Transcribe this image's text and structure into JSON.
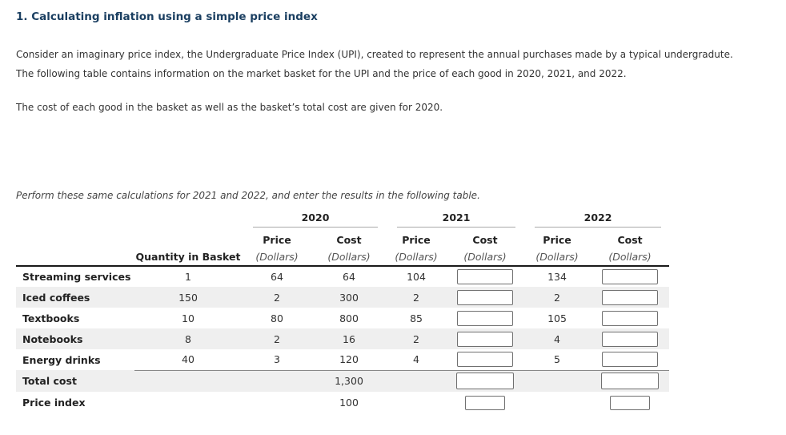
{
  "header": {
    "title": "1. Calculating inflation using a simple price index"
  },
  "intro": {
    "line1": "Consider an imaginary price index, the Undergraduate Price Index (UPI), created to represent the annual purchases made by a typical undergradute.",
    "line2": "The following table contains information on the market basket for the UPI and the price of each good in 2020, 2021, and 2022.",
    "note": "The cost of each good in the basket as well as the basket’s total cost are given for 2020.",
    "instruction": "Perform these same calculations for 2021 and 2022, and enter the results in the following table."
  },
  "table": {
    "quantity_header": "Quantity in Basket",
    "years": [
      "2020",
      "2021",
      "2022"
    ],
    "price_header": "Price",
    "cost_header": "Cost",
    "dollars_label": "(Dollars)",
    "rows": [
      {
        "label": "Streaming services",
        "quantity": "1",
        "price_2020": "64",
        "cost_2020": "64",
        "price_2021": "104",
        "price_2022": "134"
      },
      {
        "label": "Iced coffees",
        "quantity": "150",
        "price_2020": "2",
        "cost_2020": "300",
        "price_2021": "2",
        "price_2022": "2"
      },
      {
        "label": "Textbooks",
        "quantity": "10",
        "price_2020": "80",
        "cost_2020": "800",
        "price_2021": "85",
        "price_2022": "105"
      },
      {
        "label": "Notebooks",
        "quantity": "8",
        "price_2020": "2",
        "cost_2020": "16",
        "price_2021": "2",
        "price_2022": "4"
      },
      {
        "label": "Energy drinks",
        "quantity": "40",
        "price_2020": "3",
        "cost_2020": "120",
        "price_2021": "4",
        "price_2022": "5"
      }
    ],
    "total_row": {
      "label": "Total cost",
      "cost_2020": "1,300"
    },
    "index_row": {
      "label": "Price index",
      "cost_2020": "100"
    }
  },
  "colors": {
    "title_text": "#1b3f61",
    "body_text": "#333333",
    "row_stripe": "#efefef",
    "input_border": "#707070",
    "header_rule": "#1a1a1a",
    "year_underline": "#aaaaaa"
  }
}
